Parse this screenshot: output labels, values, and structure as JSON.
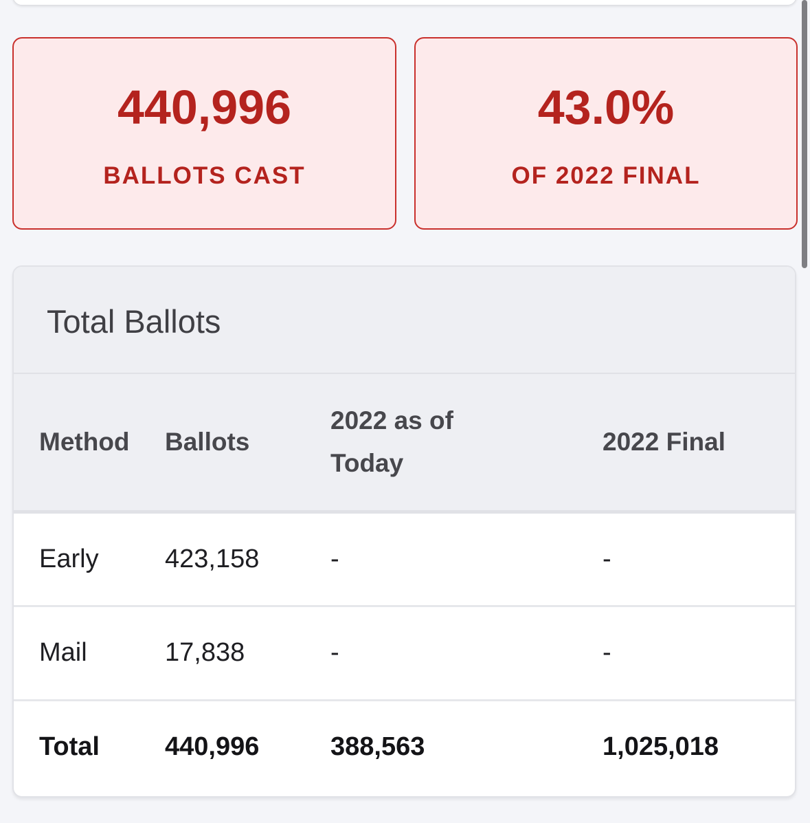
{
  "stats": [
    {
      "value": "440,996",
      "label": "BALLOTS CAST"
    },
    {
      "value": "43.0%",
      "label": "OF 2022 FINAL"
    }
  ],
  "colors": {
    "accent": "#b4231e",
    "stat_bg": "#fdeaeb",
    "header_bg": "#eeeff3"
  },
  "total_ballots": {
    "title": "Total Ballots",
    "columns": [
      "Method",
      "Ballots",
      "2022 as of Today",
      "2022 Final"
    ],
    "rows": [
      {
        "method": "Early",
        "ballots": "423,158",
        "as_of_today_2022": "-",
        "final_2022": "-"
      },
      {
        "method": "Mail",
        "ballots": "17,838",
        "as_of_today_2022": "-",
        "final_2022": "-"
      }
    ],
    "total": {
      "method": "Total",
      "ballots": "440,996",
      "as_of_today_2022": "388,563",
      "final_2022": "1,025,018"
    }
  }
}
